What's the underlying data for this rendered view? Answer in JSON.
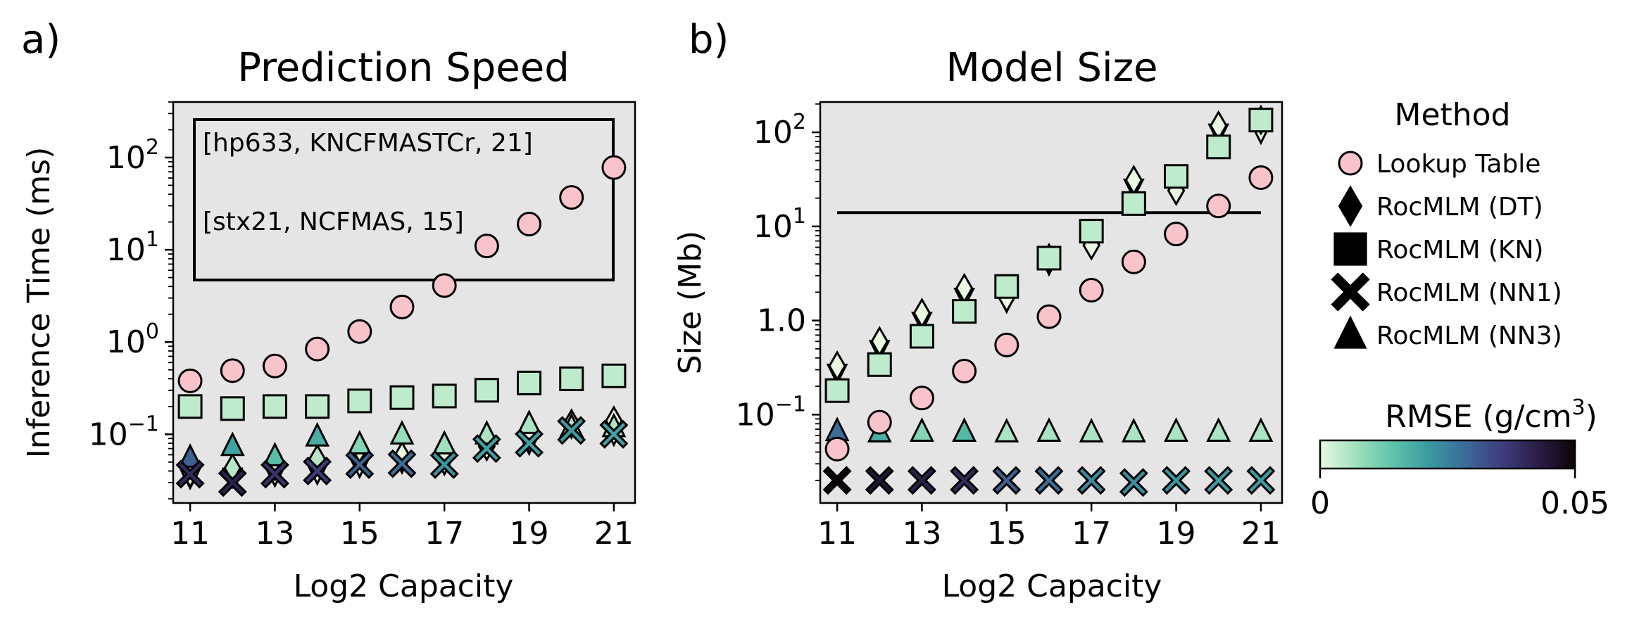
{
  "colors": {
    "panel_bg": "#e5e5e5",
    "lookup_fill": "#f9c3cb",
    "cmap": [
      "#e8f8e1",
      "#9fe0bd",
      "#5ec3a9",
      "#3a9aa1",
      "#3b6a98",
      "#3e3d7c",
      "#2a1d45",
      "#0b0406"
    ]
  },
  "chart_data": [
    {
      "panel_label": "a)",
      "type": "scatter",
      "title": "Prediction Speed",
      "xlabel": "Log2 Capacity",
      "ylabel": "Inference Time (ms)",
      "yscale": "log",
      "xlim": [
        10.6,
        21.5
      ],
      "ylim": [
        0.018,
        400
      ],
      "xticks": [
        "11",
        "13",
        "15",
        "17",
        "19",
        "21"
      ],
      "yticks": [
        {
          "base": "10",
          "exp": "2"
        },
        {
          "base": "10",
          "exp": "1"
        },
        {
          "base": "10",
          "exp": "0"
        },
        {
          "base": "10",
          "exp": "−1"
        }
      ],
      "grid": false,
      "annotation": {
        "lines": [
          "[hp633, KNCFMASTCr, 21]",
          "[stx21, NCFMAS, 15]"
        ]
      },
      "series": [
        {
          "name": "Lookup Table",
          "marker": "circle",
          "points": [
            [
              11,
              0.38
            ],
            [
              12,
              0.49
            ],
            [
              13,
              0.55
            ],
            [
              14,
              0.84
            ],
            [
              15,
              1.3
            ],
            [
              16,
              2.4
            ],
            [
              17,
              4.1
            ],
            [
              18,
              11
            ],
            [
              19,
              19
            ],
            [
              20,
              37
            ],
            [
              21,
              78
            ]
          ]
        },
        {
          "name": "RocMLM (DT)",
          "marker": "diamond",
          "points": [
            [
              11,
              0.038,
              0.0
            ],
            [
              12,
              0.043,
              0.005
            ],
            [
              13,
              0.045,
              0.0
            ],
            [
              14,
              0.054,
              0.005
            ],
            [
              15,
              0.07,
              0.0
            ],
            [
              16,
              0.058,
              0.0
            ],
            [
              17,
              0.065,
              0.0
            ],
            [
              18,
              0.074,
              0.0
            ],
            [
              19,
              0.09,
              0.0
            ],
            [
              20,
              0.13,
              0.0
            ],
            [
              21,
              0.14,
              0.0
            ]
          ]
        },
        {
          "name": "RocMLM (DT, down)",
          "marker": "triangle-down",
          "points": [
            [
              11,
              0.034,
              0.0
            ],
            [
              12,
              0.035,
              0.0
            ],
            [
              13,
              0.036,
              0.0
            ],
            [
              14,
              0.038,
              0.0
            ],
            [
              15,
              0.045,
              0.0
            ],
            [
              16,
              0.05,
              0.0
            ],
            [
              17,
              0.048,
              0.0
            ],
            [
              18,
              0.07,
              0.0
            ],
            [
              19,
              0.08,
              0.0
            ],
            [
              20,
              0.12,
              0.0
            ],
            [
              21,
              0.1,
              0.0
            ]
          ]
        },
        {
          "name": "RocMLM (KN)",
          "marker": "square",
          "points": [
            [
              11,
              0.2,
              0.004
            ],
            [
              12,
              0.19,
              0.004
            ],
            [
              13,
              0.2,
              0.004
            ],
            [
              14,
              0.2,
              0.004
            ],
            [
              15,
              0.23,
              0.004
            ],
            [
              16,
              0.25,
              0.004
            ],
            [
              17,
              0.26,
              0.004
            ],
            [
              18,
              0.3,
              0.004
            ],
            [
              19,
              0.36,
              0.004
            ],
            [
              20,
              0.4,
              0.004
            ],
            [
              21,
              0.43,
              0.004
            ]
          ]
        },
        {
          "name": "RocMLM (NN1)",
          "marker": "x",
          "points": [
            [
              11,
              0.037,
              0.04
            ],
            [
              12,
              0.03,
              0.042
            ],
            [
              13,
              0.037,
              0.038
            ],
            [
              14,
              0.04,
              0.036
            ],
            [
              15,
              0.047,
              0.03
            ],
            [
              16,
              0.048,
              0.028
            ],
            [
              17,
              0.047,
              0.022
            ],
            [
              18,
              0.07,
              0.02
            ],
            [
              19,
              0.08,
              0.02
            ],
            [
              20,
              0.11,
              0.021
            ],
            [
              21,
              0.1,
              0.02
            ]
          ]
        },
        {
          "name": "RocMLM (NN3)",
          "marker": "triangle",
          "points": [
            [
              11,
              0.056,
              0.03
            ],
            [
              12,
              0.075,
              0.02
            ],
            [
              13,
              0.058,
              0.015
            ],
            [
              14,
              0.095,
              0.018
            ],
            [
              15,
              0.078,
              0.01
            ],
            [
              16,
              0.1,
              0.008
            ],
            [
              17,
              0.078,
              0.007
            ],
            [
              18,
              0.1,
              0.006
            ],
            [
              19,
              0.13,
              0.006
            ],
            [
              20,
              0.12,
              0.006
            ],
            [
              21,
              0.12,
              0.006
            ]
          ]
        }
      ]
    },
    {
      "panel_label": "b)",
      "type": "scatter",
      "title": "Model Size",
      "xlabel": "Log2 Capacity",
      "ylabel": "Size (Mb)",
      "yscale": "log",
      "xlim": [
        10.6,
        21.5
      ],
      "ylim": [
        0.0115,
        210
      ],
      "xticks": [
        "11",
        "13",
        "15",
        "17",
        "19",
        "21"
      ],
      "yticks": [
        {
          "base": "10",
          "exp": "2"
        },
        {
          "base": "10",
          "exp": "1"
        },
        {
          "base": "10",
          "exp": "0",
          "mantissa": "1.0"
        },
        {
          "base": "10",
          "exp": "−1"
        }
      ],
      "grid": false,
      "hline": {
        "y": 14,
        "x": [
          11,
          21
        ]
      },
      "series": [
        {
          "name": "Lookup Table",
          "marker": "circle",
          "points": [
            [
              11,
              0.043
            ],
            [
              12,
              0.083
            ],
            [
              13,
              0.15
            ],
            [
              14,
              0.29
            ],
            [
              15,
              0.55
            ],
            [
              16,
              1.1
            ],
            [
              17,
              2.1
            ],
            [
              18,
              4.2
            ],
            [
              19,
              8.3
            ],
            [
              20,
              16.5
            ],
            [
              21,
              33
            ]
          ]
        },
        {
          "name": "RocMLM (DT)",
          "marker": "diamond",
          "points": [
            [
              11,
              0.33,
              0.0
            ],
            [
              12,
              0.6,
              0.0
            ],
            [
              13,
              1.2,
              0.0
            ],
            [
              14,
              2.2,
              0.0
            ],
            [
              15,
              1.75,
              0.0
            ],
            [
              16,
              4.6,
              0.0
            ],
            [
              17,
              6.3,
              0.0
            ],
            [
              18,
              31,
              0.0
            ],
            [
              19,
              24,
              0.0
            ],
            [
              20,
              118,
              0.0
            ],
            [
              21,
              135,
              0.0
            ]
          ]
        },
        {
          "name": "RocMLM (DT, down)",
          "marker": "triangle-down",
          "points": [
            [
              11,
              0.28,
              0.0
            ],
            [
              12,
              0.5,
              0.0
            ],
            [
              13,
              1.0,
              0.0
            ],
            [
              14,
              1.8,
              0.0
            ],
            [
              15,
              1.6,
              0.0
            ],
            [
              16,
              4.0,
              0.0
            ],
            [
              17,
              6.0,
              0.0
            ],
            [
              18,
              26,
              0.0
            ],
            [
              19,
              23,
              0.0
            ],
            [
              20,
              100,
              0.0
            ],
            [
              21,
              100,
              0.0
            ]
          ]
        },
        {
          "name": "RocMLM (KN)",
          "marker": "square",
          "points": [
            [
              11,
              0.18,
              0.004
            ],
            [
              12,
              0.34,
              0.004
            ],
            [
              13,
              0.68,
              0.004
            ],
            [
              14,
              1.25,
              0.004
            ],
            [
              15,
              2.3,
              0.004
            ],
            [
              16,
              4.6,
              0.004
            ],
            [
              17,
              8.9,
              0.004
            ],
            [
              18,
              17.5,
              0.004
            ],
            [
              19,
              34,
              0.004
            ],
            [
              20,
              70,
              0.004
            ],
            [
              21,
              135,
              0.004
            ]
          ]
        },
        {
          "name": "RocMLM (NN1)",
          "marker": "x",
          "points": [
            [
              11,
              0.02,
              0.05
            ],
            [
              12,
              0.02,
              0.045
            ],
            [
              13,
              0.02,
              0.042
            ],
            [
              14,
              0.02,
              0.04
            ],
            [
              15,
              0.02,
              0.03
            ],
            [
              16,
              0.02,
              0.028
            ],
            [
              17,
              0.02,
              0.024
            ],
            [
              18,
              0.019,
              0.023
            ],
            [
              19,
              0.02,
              0.022
            ],
            [
              20,
              0.02,
              0.021
            ],
            [
              21,
              0.02,
              0.021
            ]
          ]
        },
        {
          "name": "RocMLM (NN3)",
          "marker": "triangle",
          "points": [
            [
              11,
              0.067,
              0.028
            ],
            [
              12,
              0.065,
              0.018
            ],
            [
              13,
              0.066,
              0.01
            ],
            [
              14,
              0.066,
              0.016
            ],
            [
              15,
              0.065,
              0.006
            ],
            [
              16,
              0.066,
              0.006
            ],
            [
              17,
              0.065,
              0.006
            ],
            [
              18,
              0.065,
              0.006
            ],
            [
              19,
              0.066,
              0.006
            ],
            [
              20,
              0.066,
              0.006
            ],
            [
              21,
              0.066,
              0.006
            ]
          ]
        }
      ]
    }
  ],
  "legend": {
    "title": "Method",
    "placement": "right",
    "entries": [
      {
        "label": "Lookup Table",
        "marker": "circle"
      },
      {
        "label": "RocMLM (DT)",
        "marker": "diamond"
      },
      {
        "label": "RocMLM (KN)",
        "marker": "square"
      },
      {
        "label": "RocMLM (NN1)",
        "marker": "x"
      },
      {
        "label": "RocMLM (NN3)",
        "marker": "triangle"
      }
    ]
  },
  "colorbar": {
    "title_main": "RMSE (g/cm",
    "title_sup": "3",
    "title_end": ")",
    "min_label": "0",
    "max_label": "0.05",
    "range": [
      0,
      0.05
    ]
  }
}
